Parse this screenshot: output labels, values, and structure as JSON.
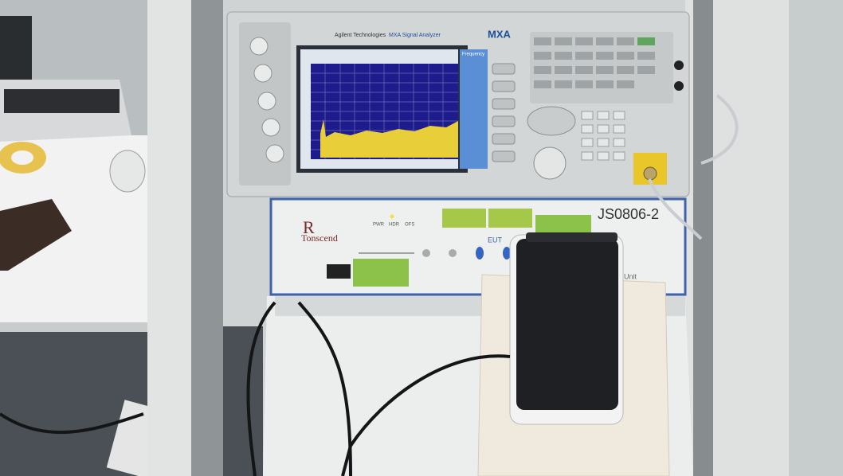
{
  "analyzer": {
    "brand": "Agilent Technologies",
    "model": "MXA Signal Analyzer",
    "badge": "MXA",
    "softkey": "Frequency"
  },
  "shield_box": {
    "logo": "Tonscend",
    "model": "JS0806-2",
    "port_label": "EUT",
    "indicators": [
      "PWR",
      "HDR",
      "OFS"
    ],
    "side_text": "Unit"
  }
}
